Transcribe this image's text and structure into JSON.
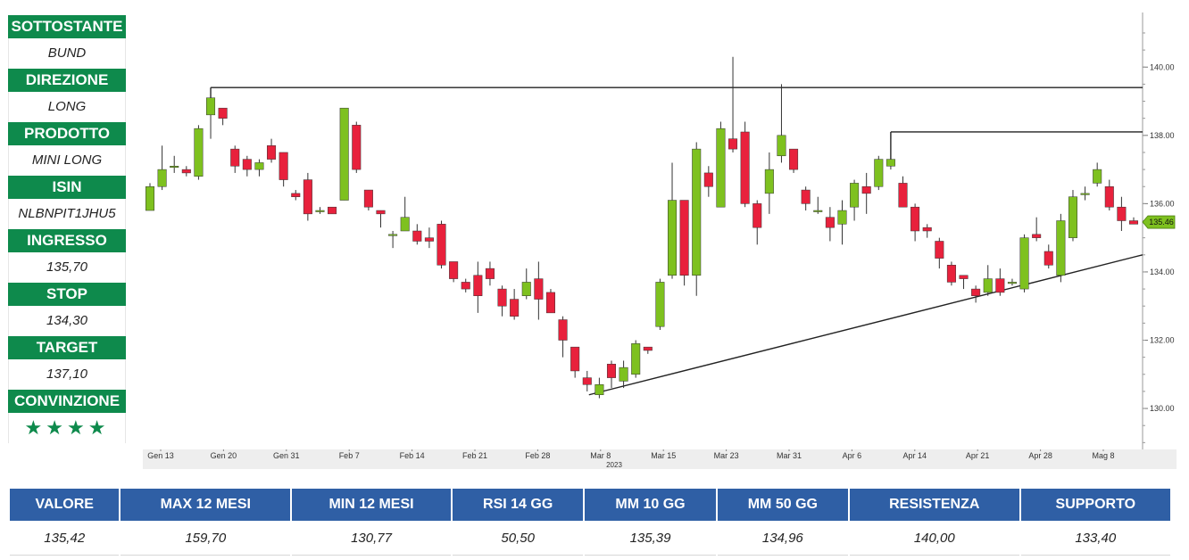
{
  "sidebar": {
    "items": [
      {
        "label": "SOTTOSTANTE",
        "value": "BUND"
      },
      {
        "label": "DIREZIONE",
        "value": "LONG"
      },
      {
        "label": "PRODOTTO",
        "value": "MINI LONG"
      },
      {
        "label": "ISIN",
        "value": "NLBNPIT1JHU5"
      },
      {
        "label": "INGRESSO",
        "value": "135,70"
      },
      {
        "label": "STOP",
        "value": "134,30"
      },
      {
        "label": "TARGET",
        "value": "137,10"
      },
      {
        "label": "CONVINZIONE",
        "value": "★★★★"
      }
    ]
  },
  "colors": {
    "up": "#7ec11f",
    "down": "#e8213c",
    "label_green": "#0e8a4c",
    "header_blue": "#2f5fa5"
  },
  "chart_data": {
    "type": "candlestick",
    "y_ticks": [
      "130.00",
      "132.00",
      "134.00",
      "136.00",
      "138.00",
      "140.00"
    ],
    "ylim": [
      128.8,
      141.6
    ],
    "x_tick_labels": [
      "Gen 13",
      "Gen 20",
      "Gen 31",
      "Feb 7",
      "Feb 14",
      "Feb 21",
      "Feb 28",
      "Mar 8",
      "Mar 15",
      "Mar 23",
      "Mar 31",
      "Apr 6",
      "Apr 14",
      "Apr 21",
      "Apr 28",
      "Mag 8"
    ],
    "year_label": "2023",
    "last_price_label": "135.46",
    "last_price": 135.46,
    "candles": [
      [
        135.8,
        136.5,
        136.6,
        135.8
      ],
      [
        136.5,
        137.0,
        137.7,
        136.4
      ],
      [
        137.1,
        137.1,
        137.4,
        136.9
      ],
      [
        137.0,
        136.9,
        137.1,
        136.8
      ],
      [
        136.8,
        138.2,
        138.3,
        136.7
      ],
      [
        138.6,
        139.1,
        139.4,
        137.9
      ],
      [
        138.8,
        138.5,
        138.8,
        138.3
      ],
      [
        137.6,
        137.1,
        137.7,
        136.9
      ],
      [
        137.3,
        137.0,
        137.4,
        136.8
      ],
      [
        137.0,
        137.2,
        137.3,
        136.8
      ],
      [
        137.7,
        137.3,
        137.9,
        137.2
      ],
      [
        137.5,
        136.7,
        137.5,
        136.5
      ],
      [
        136.3,
        136.2,
        136.4,
        136.1
      ],
      [
        136.7,
        135.7,
        136.9,
        135.5
      ],
      [
        135.8,
        135.8,
        135.9,
        135.7
      ],
      [
        135.9,
        135.7,
        135.9,
        135.7
      ],
      [
        136.1,
        138.8,
        138.8,
        136.1
      ],
      [
        138.3,
        137.0,
        138.4,
        136.9
      ],
      [
        136.4,
        135.9,
        136.4,
        135.8
      ],
      [
        135.8,
        135.7,
        135.8,
        135.3
      ],
      [
        135.1,
        135.1,
        135.2,
        134.7
      ],
      [
        135.2,
        135.6,
        136.2,
        135.2
      ],
      [
        135.2,
        134.9,
        135.4,
        134.8
      ],
      [
        135.0,
        134.9,
        135.3,
        134.7
      ],
      [
        135.4,
        134.2,
        135.5,
        134.1
      ],
      [
        134.3,
        133.8,
        134.3,
        133.7
      ],
      [
        133.7,
        133.5,
        133.8,
        133.4
      ],
      [
        133.9,
        133.3,
        134.3,
        132.8
      ],
      [
        134.1,
        133.8,
        134.3,
        133.6
      ],
      [
        133.5,
        133.0,
        133.6,
        132.7
      ],
      [
        133.2,
        132.7,
        133.5,
        132.6
      ],
      [
        133.3,
        133.7,
        134.1,
        133.2
      ],
      [
        133.8,
        133.2,
        134.3,
        132.6
      ],
      [
        133.4,
        132.8,
        133.5,
        132.8
      ],
      [
        132.6,
        132.0,
        132.7,
        131.5
      ],
      [
        131.8,
        131.1,
        131.8,
        130.9
      ],
      [
        130.9,
        130.7,
        131.1,
        130.5
      ],
      [
        130.4,
        130.7,
        130.9,
        130.3
      ],
      [
        131.3,
        130.9,
        131.4,
        130.6
      ],
      [
        130.8,
        131.2,
        131.4,
        130.6
      ],
      [
        131.0,
        131.9,
        132.0,
        130.9
      ],
      [
        131.8,
        131.7,
        131.8,
        131.6
      ],
      [
        132.4,
        133.7,
        133.8,
        132.3
      ],
      [
        133.9,
        136.1,
        137.2,
        133.8
      ],
      [
        136.1,
        133.9,
        136.1,
        133.6
      ],
      [
        133.9,
        137.6,
        137.8,
        133.3
      ],
      [
        136.9,
        136.5,
        137.1,
        136.2
      ],
      [
        135.9,
        138.2,
        138.4,
        135.9
      ],
      [
        137.9,
        137.6,
        140.3,
        137.5
      ],
      [
        138.1,
        136.0,
        138.4,
        135.9
      ],
      [
        136.0,
        135.3,
        136.1,
        134.8
      ],
      [
        136.3,
        137.0,
        137.5,
        135.7
      ],
      [
        137.4,
        138.0,
        139.5,
        137.2
      ],
      [
        137.6,
        137.0,
        137.6,
        136.9
      ],
      [
        136.4,
        136.0,
        136.5,
        135.8
      ],
      [
        135.8,
        135.8,
        136.2,
        135.7
      ],
      [
        135.6,
        135.3,
        135.9,
        134.9
      ],
      [
        135.4,
        135.8,
        136.1,
        134.8
      ],
      [
        135.9,
        136.6,
        136.7,
        135.5
      ],
      [
        136.5,
        136.3,
        136.9,
        135.7
      ],
      [
        136.5,
        137.3,
        137.4,
        136.4
      ],
      [
        137.1,
        137.3,
        137.9,
        137.0
      ],
      [
        136.6,
        135.9,
        136.8,
        135.9
      ],
      [
        135.9,
        135.2,
        136.0,
        134.9
      ],
      [
        135.3,
        135.2,
        135.4,
        135.0
      ],
      [
        134.9,
        134.4,
        135.0,
        134.1
      ],
      [
        134.2,
        133.7,
        134.3,
        133.6
      ],
      [
        133.9,
        133.8,
        133.9,
        133.5
      ],
      [
        133.5,
        133.3,
        133.6,
        133.1
      ],
      [
        133.4,
        133.8,
        134.2,
        133.3
      ],
      [
        133.8,
        133.4,
        134.1,
        133.3
      ],
      [
        133.7,
        133.7,
        133.8,
        133.6
      ],
      [
        133.5,
        135.0,
        135.1,
        133.4
      ],
      [
        135.1,
        135.0,
        135.6,
        134.9
      ],
      [
        134.6,
        134.2,
        134.8,
        134.1
      ],
      [
        133.9,
        135.5,
        135.7,
        133.7
      ],
      [
        135.0,
        136.2,
        136.4,
        134.9
      ],
      [
        136.3,
        136.3,
        136.5,
        136.1
      ],
      [
        136.6,
        137.0,
        137.2,
        136.5
      ],
      [
        136.5,
        135.9,
        136.7,
        135.8
      ],
      [
        135.9,
        135.5,
        136.2,
        135.2
      ],
      [
        135.5,
        135.4,
        135.6,
        135.4
      ]
    ],
    "resistance_1": {
      "from_index": 5,
      "level": 139.4
    },
    "resistance_2": {
      "from_index": 61,
      "level": 138.1
    },
    "trendline": {
      "from": [
        36,
        130.4
      ],
      "to_price_at_right_edge": 134.5
    }
  },
  "table": {
    "headers": [
      "VALORE",
      "MAX 12 MESI",
      "MIN 12 MESI",
      "RSI 14 GG",
      "MM 10 GG",
      "MM 50 GG",
      "RESISTENZA",
      "SUPPORTO"
    ],
    "values": [
      "135,42",
      "159,70",
      "130,77",
      "50,50",
      "135,39",
      "134,96",
      "140,00",
      "133,40"
    ]
  }
}
